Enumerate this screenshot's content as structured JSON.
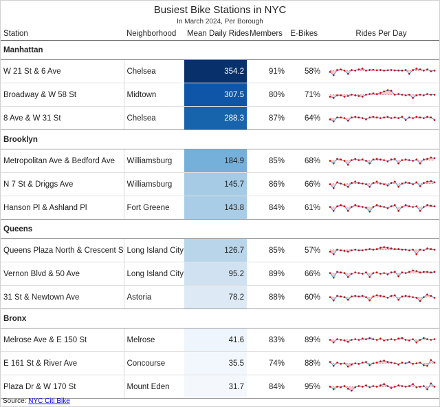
{
  "title": "Busiest Bike Stations in NYC",
  "subtitle": "In March 2024, Per Borough",
  "columns": {
    "station": "Station",
    "neighborhood": "Neighborhood",
    "mean_daily_rides": "Mean Daily Rides",
    "members": "Members",
    "ebikes": "E-Bikes",
    "rides_per_day": "Rides Per Day"
  },
  "groups": [
    {
      "borough": "Manhattan",
      "rows": [
        {
          "station": "W 21 St & 6 Ave",
          "neighborhood": "Chelsea",
          "rides": "354.2",
          "members": "91%",
          "ebikes": "58%",
          "fill": "#08306b",
          "text_color": "#ffffff",
          "spark": [
            0.45,
            0.2,
            0.6,
            0.65,
            0.55,
            0.3,
            0.6,
            0.55,
            0.65,
            0.7,
            0.55,
            0.6,
            0.62,
            0.58,
            0.6,
            0.55,
            0.58,
            0.6,
            0.57,
            0.56,
            0.55,
            0.6,
            0.3,
            0.6,
            0.7,
            0.65,
            0.55,
            0.65,
            0.5,
            0.55
          ]
        },
        {
          "station": "Broadway & W 58 St",
          "neighborhood": "Midtown",
          "rides": "307.5",
          "members": "80%",
          "ebikes": "71%",
          "fill": "#0f56a8",
          "text_color": "#ffffff",
          "spark": [
            0.35,
            0.25,
            0.45,
            0.45,
            0.35,
            0.4,
            0.5,
            0.45,
            0.4,
            0.35,
            0.5,
            0.55,
            0.6,
            0.55,
            0.65,
            0.75,
            0.85,
            0.8,
            0.5,
            0.55,
            0.5,
            0.45,
            0.5,
            0.25,
            0.45,
            0.5,
            0.45,
            0.55,
            0.5,
            0.5
          ]
        },
        {
          "station": "8 Ave & W 31 St",
          "neighborhood": "Chelsea",
          "rides": "288.3",
          "members": "87%",
          "ebikes": "64%",
          "fill": "#1764ad",
          "text_color": "#ffffff",
          "spark": [
            0.4,
            0.25,
            0.55,
            0.55,
            0.5,
            0.3,
            0.55,
            0.6,
            0.55,
            0.5,
            0.4,
            0.55,
            0.6,
            0.55,
            0.5,
            0.55,
            0.6,
            0.5,
            0.55,
            0.5,
            0.6,
            0.35,
            0.55,
            0.5,
            0.6,
            0.55,
            0.5,
            0.6,
            0.55,
            0.35
          ]
        }
      ]
    },
    {
      "borough": "Brooklyn",
      "rows": [
        {
          "station": "Metropolitan Ave & Bedford Ave",
          "neighborhood": "Williamsburg",
          "rides": "184.9",
          "members": "85%",
          "ebikes": "68%",
          "fill": "#74b0d9",
          "text_color": "#222222",
          "spark": [
            0.5,
            0.3,
            0.65,
            0.6,
            0.5,
            0.2,
            0.55,
            0.65,
            0.55,
            0.6,
            0.5,
            0.3,
            0.6,
            0.65,
            0.6,
            0.55,
            0.45,
            0.6,
            0.65,
            0.3,
            0.55,
            0.6,
            0.55,
            0.5,
            0.6,
            0.3,
            0.6,
            0.65,
            0.75,
            0.7
          ]
        },
        {
          "station": "N 7 St & Driggs Ave",
          "neighborhood": "Williamsburg",
          "rides": "145.7",
          "members": "86%",
          "ebikes": "66%",
          "fill": "#a6cbe5",
          "text_color": "#222222",
          "spark": [
            0.5,
            0.2,
            0.65,
            0.55,
            0.45,
            0.3,
            0.6,
            0.7,
            0.6,
            0.55,
            0.5,
            0.3,
            0.6,
            0.7,
            0.55,
            0.5,
            0.4,
            0.6,
            0.7,
            0.3,
            0.55,
            0.65,
            0.6,
            0.5,
            0.65,
            0.35,
            0.6,
            0.7,
            0.75,
            0.65
          ]
        },
        {
          "station": "Hanson Pl & Ashland Pl",
          "neighborhood": "Fort Greene",
          "rides": "143.8",
          "members": "84%",
          "ebikes": "61%",
          "fill": "#a9cde6",
          "text_color": "#222222",
          "spark": [
            0.55,
            0.25,
            0.6,
            0.7,
            0.6,
            0.25,
            0.55,
            0.7,
            0.6,
            0.55,
            0.5,
            0.2,
            0.55,
            0.7,
            0.6,
            0.55,
            0.45,
            0.6,
            0.7,
            0.25,
            0.55,
            0.7,
            0.6,
            0.55,
            0.6,
            0.25,
            0.55,
            0.7,
            0.65,
            0.6
          ]
        }
      ]
    },
    {
      "borough": "Queens",
      "rows": [
        {
          "station": "Queens Plaza North & Crescent St",
          "neighborhood": "Long Island City",
          "rides": "126.7",
          "members": "85%",
          "ebikes": "57%",
          "fill": "#b8d5ea",
          "text_color": "#222222",
          "spark": [
            0.4,
            0.2,
            0.55,
            0.5,
            0.45,
            0.4,
            0.5,
            0.55,
            0.5,
            0.5,
            0.55,
            0.6,
            0.55,
            0.6,
            0.7,
            0.75,
            0.7,
            0.65,
            0.6,
            0.6,
            0.55,
            0.55,
            0.5,
            0.55,
            0.2,
            0.55,
            0.5,
            0.65,
            0.6,
            0.55
          ]
        },
        {
          "station": "Vernon Blvd & 50 Ave",
          "neighborhood": "Long Island City",
          "rides": "95.2",
          "members": "89%",
          "ebikes": "66%",
          "fill": "#d0e2f2",
          "text_color": "#222222",
          "spark": [
            0.55,
            0.2,
            0.65,
            0.6,
            0.55,
            0.25,
            0.5,
            0.6,
            0.55,
            0.5,
            0.6,
            0.25,
            0.55,
            0.6,
            0.5,
            0.55,
            0.45,
            0.6,
            0.65,
            0.3,
            0.6,
            0.55,
            0.65,
            0.75,
            0.7,
            0.6,
            0.65,
            0.65,
            0.6,
            0.65
          ]
        },
        {
          "station": "31 St & Newtown Ave",
          "neighborhood": "Astoria",
          "rides": "78.2",
          "members": "88%",
          "ebikes": "60%",
          "fill": "#ddeaf6",
          "text_color": "#222222",
          "spark": [
            0.5,
            0.25,
            0.6,
            0.55,
            0.5,
            0.3,
            0.55,
            0.6,
            0.55,
            0.6,
            0.5,
            0.25,
            0.55,
            0.65,
            0.6,
            0.55,
            0.45,
            0.6,
            0.65,
            0.3,
            0.55,
            0.6,
            0.55,
            0.5,
            0.45,
            0.2,
            0.5,
            0.7,
            0.6,
            0.45
          ]
        }
      ]
    },
    {
      "borough": "Bronx",
      "rows": [
        {
          "station": "Melrose Ave & E 150 St",
          "neighborhood": "Melrose",
          "rides": "41.6",
          "members": "83%",
          "ebikes": "89%",
          "fill": "#eff5fc",
          "text_color": "#222222",
          "spark": [
            0.5,
            0.3,
            0.55,
            0.5,
            0.45,
            0.35,
            0.5,
            0.55,
            0.5,
            0.6,
            0.55,
            0.65,
            0.55,
            0.5,
            0.6,
            0.45,
            0.5,
            0.55,
            0.5,
            0.6,
            0.65,
            0.5,
            0.45,
            0.55,
            0.3,
            0.5,
            0.65,
            0.55,
            0.5,
            0.55
          ]
        },
        {
          "station": "E 161 St & River Ave",
          "neighborhood": "Concourse",
          "rides": "35.5",
          "members": "74%",
          "ebikes": "88%",
          "fill": "#f2f7fd",
          "text_color": "#222222",
          "spark": [
            0.6,
            0.3,
            0.55,
            0.45,
            0.5,
            0.25,
            0.4,
            0.5,
            0.45,
            0.55,
            0.6,
            0.35,
            0.5,
            0.55,
            0.65,
            0.7,
            0.6,
            0.55,
            0.5,
            0.4,
            0.55,
            0.5,
            0.6,
            0.45,
            0.5,
            0.55,
            0.35,
            0.3,
            0.75,
            0.55
          ]
        },
        {
          "station": "Plaza Dr & W 170 St",
          "neighborhood": "Mount Eden",
          "rides": "31.7",
          "members": "84%",
          "ebikes": "95%",
          "fill": "#f4f8fd",
          "text_color": "#222222",
          "spark": [
            0.5,
            0.3,
            0.5,
            0.45,
            0.55,
            0.35,
            0.2,
            0.45,
            0.55,
            0.5,
            0.6,
            0.45,
            0.55,
            0.5,
            0.6,
            0.7,
            0.55,
            0.4,
            0.5,
            0.6,
            0.55,
            0.5,
            0.55,
            0.7,
            0.45,
            0.5,
            0.55,
            0.3,
            0.75,
            0.5
          ]
        }
      ]
    }
  ],
  "source_label": "Source: ",
  "source_link": "NYC Citi Bike",
  "colors": {
    "spark_line": "#5b9bd5",
    "spark_fill": "#f9c9cc",
    "spark_dot": "#cc0000",
    "spark_ref": "#e07070"
  }
}
